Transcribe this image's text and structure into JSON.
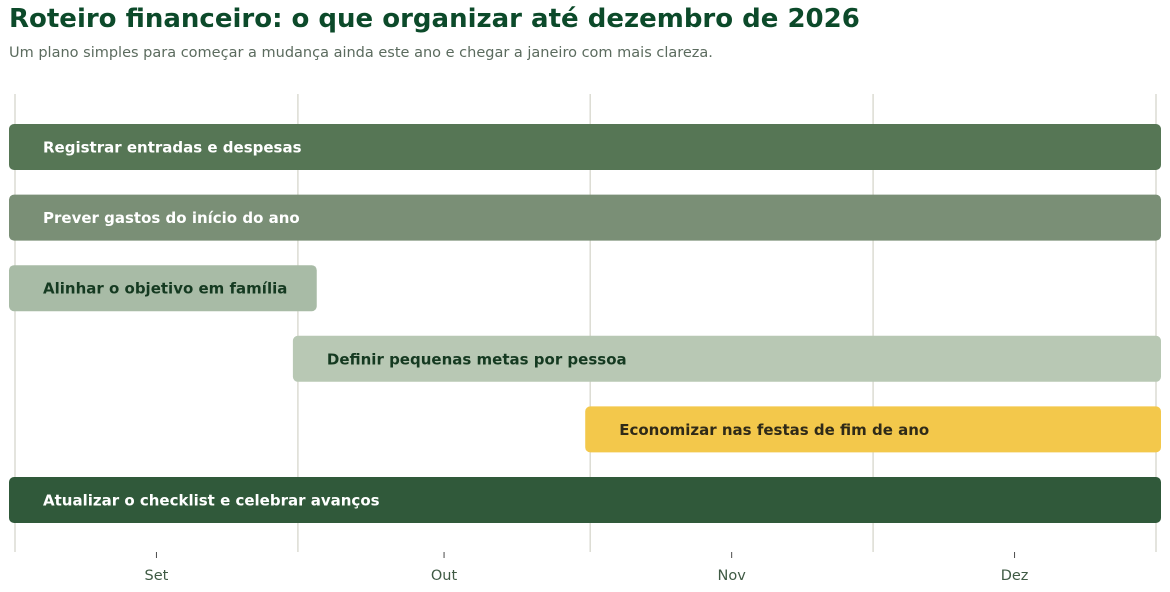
{
  "header": {
    "title": "Roteiro financeiro: o que organizar até dezembro de 2026",
    "subtitle": "Um plano simples para começar a mudança ainda este ano e chegar a janeiro com mais clareza."
  },
  "chart_data": {
    "type": "gantt",
    "title": "Roteiro financeiro: o que organizar até dezembro de 2026",
    "subtitle": "Um plano simples para começar a mudança ainda este ano e chegar a janeiro com mais clareza.",
    "x_axis": {
      "ticks": [
        "Set",
        "Out",
        "Nov",
        "Dez"
      ],
      "range": [
        "2026-09-01",
        "2026-12-31"
      ],
      "grid": true
    },
    "tasks": [
      {
        "label": "Registrar entradas e despesas",
        "start": "2026-09-01",
        "end": "2026-12-31",
        "color": "#567655",
        "text_color": "#ffffff"
      },
      {
        "label": "Prever gastos do início do ano",
        "start": "2026-09-01",
        "end": "2026-12-31",
        "color": "#7a8f76",
        "text_color": "#ffffff"
      },
      {
        "label": "Alinhar o objetivo em família",
        "start": "2026-09-01",
        "end": "2026-10-03",
        "color": "#a8bba6",
        "text_color": "#153a21"
      },
      {
        "label": "Definir pequenas metas por pessoa",
        "start": "2026-10-01",
        "end": "2026-12-31",
        "color": "#b8c8b4",
        "text_color": "#153a21"
      },
      {
        "label": "Economizar nas festas de fim de ano",
        "start": "2026-11-01",
        "end": "2026-12-31",
        "color": "#f3c84b",
        "text_color": "#2f2a18"
      },
      {
        "label": "Atualizar o checklist e celebrar avanços",
        "start": "2026-09-01",
        "end": "2026-12-31",
        "color": "#30593a",
        "text_color": "#ffffff"
      }
    ]
  }
}
